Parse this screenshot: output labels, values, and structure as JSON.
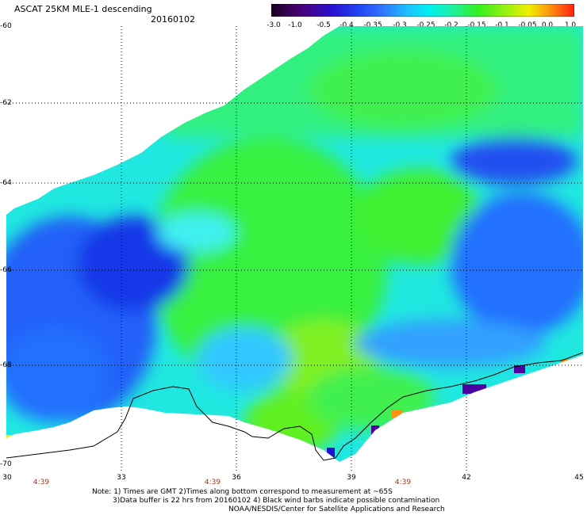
{
  "header": {
    "title": "ASCAT 25KM MLE-1 descending",
    "date": "20160102"
  },
  "colorbar": {
    "tick_labels": [
      "-3.0",
      "-1.0",
      "-0.5",
      "-0.4",
      "-0.35",
      "-0.3",
      "-0.25",
      "-0.2",
      "-0.15",
      "-0.1",
      "-0.05",
      "0.0",
      "1.0"
    ],
    "colors": [
      "#1a0020",
      "#4a007a",
      "#2a10d0",
      "#2040f0",
      "#3070ff",
      "#20c0ff",
      "#00f0f0",
      "#20f0a0",
      "#30f020",
      "#a0f010",
      "#f0f000",
      "#ff9010",
      "#ff2010"
    ]
  },
  "axes": {
    "lat_labels": [
      "-60",
      "-62",
      "-64",
      "-66",
      "-68",
      "-70"
    ],
    "lon_labels": [
      "30",
      "33",
      "36",
      "39",
      "42",
      "45"
    ],
    "time_labels": [
      "4:39",
      "4:39",
      "4:39"
    ]
  },
  "notes": {
    "line1": "Note: 1) Times are GMT 2)Times along bottom correspond to measurement at ~65S",
    "line2": "3)Data buffer is 22 hrs from 20160102 4) Black wind barbs indicate possible contamination",
    "line3": "NOAA/NESDIS/Center for Satellite Applications and Research"
  }
}
